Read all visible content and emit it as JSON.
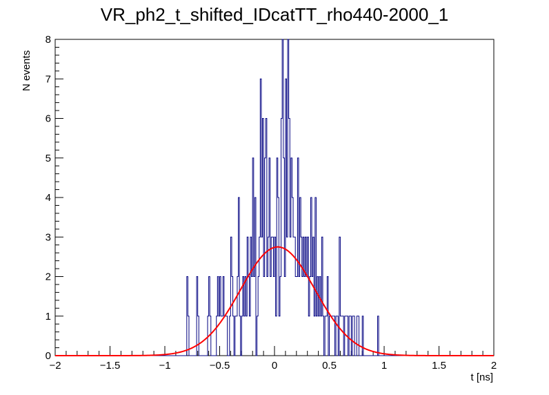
{
  "chart_data": {
    "type": "histogram",
    "title": "VR_ph2_t_shifted_IDcatTT_rho440-2000_1",
    "xlabel": "t [ns]",
    "ylabel": "N events",
    "xlim": [
      -2,
      2
    ],
    "ylim": [
      0,
      8
    ],
    "x_ticks": [
      "−2",
      "−1.5",
      "−1",
      "−0.5",
      "0",
      "0.5",
      "1",
      "1.5",
      "2"
    ],
    "y_ticks": [
      "0",
      "1",
      "2",
      "3",
      "4",
      "5",
      "6",
      "7",
      "8"
    ],
    "grid": false,
    "legend": "none",
    "colors": {
      "histogram": "#000080",
      "fit": "#ff0000"
    },
    "histogram": {
      "bin_width": 0.01,
      "nonzero_bins": [
        [
          -0.8,
          2
        ],
        [
          -0.79,
          1
        ],
        [
          -0.71,
          2
        ],
        [
          -0.7,
          1
        ],
        [
          -0.61,
          1
        ],
        [
          -0.6,
          2
        ],
        [
          -0.59,
          1
        ],
        [
          -0.53,
          1
        ],
        [
          -0.52,
          2
        ],
        [
          -0.51,
          1
        ],
        [
          -0.5,
          2
        ],
        [
          -0.49,
          1
        ],
        [
          -0.48,
          1
        ],
        [
          -0.47,
          2
        ],
        [
          -0.46,
          1
        ],
        [
          -0.45,
          1
        ],
        [
          -0.44,
          1
        ],
        [
          -0.41,
          1
        ],
        [
          -0.4,
          3
        ],
        [
          -0.39,
          2
        ],
        [
          -0.38,
          1
        ],
        [
          -0.36,
          1
        ],
        [
          -0.35,
          1
        ],
        [
          -0.34,
          2
        ],
        [
          -0.33,
          4
        ],
        [
          -0.32,
          1
        ],
        [
          -0.3,
          1
        ],
        [
          -0.29,
          2
        ],
        [
          -0.28,
          1
        ],
        [
          -0.27,
          2
        ],
        [
          -0.26,
          1
        ],
        [
          -0.25,
          3
        ],
        [
          -0.24,
          2
        ],
        [
          -0.23,
          1
        ],
        [
          -0.22,
          3
        ],
        [
          -0.21,
          2
        ],
        [
          -0.2,
          5
        ],
        [
          -0.19,
          2
        ],
        [
          -0.18,
          4
        ],
        [
          -0.16,
          1
        ],
        [
          -0.15,
          2
        ],
        [
          -0.14,
          3
        ],
        [
          -0.13,
          7
        ],
        [
          -0.12,
          3
        ],
        [
          -0.11,
          6
        ],
        [
          -0.1,
          2
        ],
        [
          -0.09,
          5
        ],
        [
          -0.08,
          6
        ],
        [
          -0.07,
          2
        ],
        [
          -0.06,
          3
        ],
        [
          -0.05,
          5
        ],
        [
          -0.04,
          2
        ],
        [
          -0.03,
          3
        ],
        [
          -0.02,
          3
        ],
        [
          -0.01,
          2
        ],
        [
          0.0,
          3
        ],
        [
          0.01,
          1
        ],
        [
          0.02,
          5
        ],
        [
          0.03,
          4
        ],
        [
          0.04,
          1
        ],
        [
          0.05,
          2
        ],
        [
          0.06,
          6
        ],
        [
          0.07,
          8
        ],
        [
          0.08,
          5
        ],
        [
          0.09,
          2
        ],
        [
          0.1,
          7
        ],
        [
          0.11,
          3
        ],
        [
          0.12,
          8
        ],
        [
          0.13,
          6
        ],
        [
          0.14,
          3
        ],
        [
          0.15,
          5
        ],
        [
          0.16,
          4
        ],
        [
          0.17,
          3
        ],
        [
          0.18,
          3
        ],
        [
          0.19,
          2
        ],
        [
          0.2,
          2
        ],
        [
          0.21,
          5
        ],
        [
          0.22,
          2
        ],
        [
          0.23,
          4
        ],
        [
          0.24,
          3
        ],
        [
          0.25,
          2
        ],
        [
          0.26,
          3
        ],
        [
          0.27,
          2
        ],
        [
          0.28,
          3
        ],
        [
          0.29,
          2
        ],
        [
          0.3,
          3
        ],
        [
          0.31,
          1
        ],
        [
          0.32,
          2
        ],
        [
          0.33,
          4
        ],
        [
          0.34,
          2
        ],
        [
          0.35,
          3
        ],
        [
          0.36,
          1
        ],
        [
          0.37,
          4
        ],
        [
          0.38,
          1
        ],
        [
          0.39,
          2
        ],
        [
          0.4,
          1
        ],
        [
          0.41,
          2
        ],
        [
          0.42,
          1
        ],
        [
          0.43,
          3
        ],
        [
          0.44,
          1
        ],
        [
          0.46,
          1
        ],
        [
          0.47,
          1
        ],
        [
          0.48,
          2
        ],
        [
          0.5,
          1
        ],
        [
          0.51,
          1
        ],
        [
          0.52,
          1
        ],
        [
          0.53,
          1
        ],
        [
          0.54,
          1
        ],
        [
          0.56,
          1
        ],
        [
          0.57,
          1
        ],
        [
          0.59,
          3
        ],
        [
          0.6,
          1
        ],
        [
          0.61,
          1
        ],
        [
          0.62,
          1
        ],
        [
          0.64,
          1
        ],
        [
          0.65,
          1
        ],
        [
          0.66,
          1
        ],
        [
          0.68,
          1
        ],
        [
          0.69,
          1
        ],
        [
          0.71,
          1
        ],
        [
          0.72,
          1
        ],
        [
          0.75,
          1
        ],
        [
          0.76,
          1
        ],
        [
          0.8,
          1
        ],
        [
          0.94,
          1
        ]
      ]
    },
    "fit": {
      "type": "gaussian",
      "amplitude": 2.75,
      "mean": 0.03,
      "sigma": 0.34,
      "range": [
        -2,
        2
      ]
    }
  }
}
